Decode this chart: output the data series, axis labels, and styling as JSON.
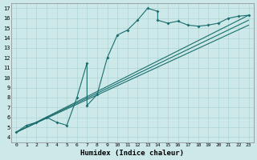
{
  "xlabel": "Humidex (Indice chaleur)",
  "bg_color": "#cce8e8",
  "line_color": "#1a6e6e",
  "grid_color": "#aed4d4",
  "xlim": [
    -0.5,
    23.5
  ],
  "ylim": [
    3.5,
    17.5
  ],
  "xticks": [
    0,
    1,
    2,
    3,
    4,
    5,
    6,
    7,
    8,
    9,
    10,
    11,
    12,
    13,
    14,
    15,
    16,
    17,
    18,
    19,
    20,
    21,
    22,
    23
  ],
  "yticks": [
    4,
    5,
    6,
    7,
    8,
    9,
    10,
    11,
    12,
    13,
    14,
    15,
    16,
    17
  ],
  "line1_x": [
    0,
    1,
    2,
    3,
    4,
    5,
    6,
    7,
    7,
    8,
    9,
    10,
    11,
    12,
    13,
    14,
    14,
    15,
    16,
    17,
    18,
    19,
    20,
    21,
    22,
    23
  ],
  "line1_y": [
    4.5,
    5.2,
    5.5,
    6.0,
    5.5,
    5.2,
    8.0,
    11.5,
    7.2,
    8.3,
    12.0,
    14.3,
    14.8,
    15.8,
    17.0,
    16.7,
    15.8,
    15.5,
    15.7,
    15.3,
    15.2,
    15.3,
    15.5,
    16.0,
    16.2,
    16.3
  ],
  "line2_x": [
    0,
    23
  ],
  "line2_y": [
    4.5,
    16.3
  ],
  "line3_x": [
    0,
    23
  ],
  "line3_y": [
    4.5,
    15.8
  ],
  "line4_x": [
    0,
    23
  ],
  "line4_y": [
    4.5,
    15.3
  ]
}
